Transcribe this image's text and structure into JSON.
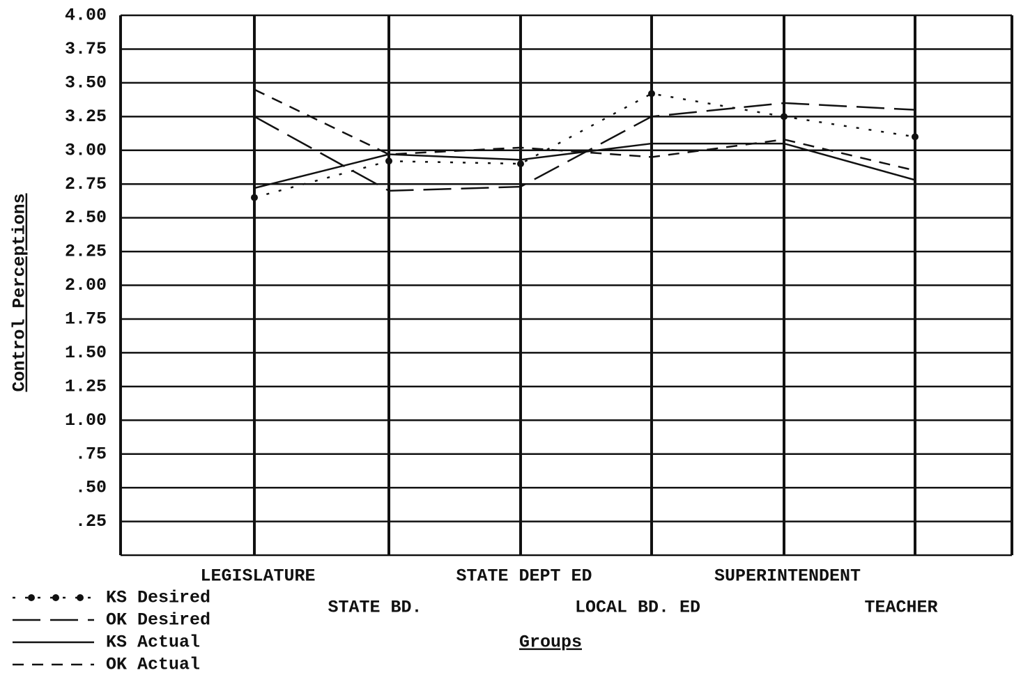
{
  "chart_data": {
    "type": "line",
    "y_label": "Control Perceptions",
    "x_label": "Groups",
    "categories": [
      "LEGISLATURE",
      "STATE BD.",
      "STATE DEPT ED",
      "LOCAL BD. ED",
      "SUPERINTENDENT",
      "TEACHER"
    ],
    "ylim": [
      0,
      4
    ],
    "yticks": [
      {
        "value": 0.25,
        "label": ".25"
      },
      {
        "value": 0.5,
        "label": ".50"
      },
      {
        "value": 0.75,
        "label": ".75"
      },
      {
        "value": 1,
        "label": "1.00"
      },
      {
        "value": 1.25,
        "label": "1.25"
      },
      {
        "value": 1.5,
        "label": "1.50"
      },
      {
        "value": 1.75,
        "label": "1.75"
      },
      {
        "value": 2,
        "label": "2.00"
      },
      {
        "value": 2.25,
        "label": "2.25"
      },
      {
        "value": 2.5,
        "label": "2.50"
      },
      {
        "value": 2.75,
        "label": "2.75"
      },
      {
        "value": 3,
        "label": "3.00"
      },
      {
        "value": 3.25,
        "label": "3.25"
      },
      {
        "value": 3.5,
        "label": "3.50"
      },
      {
        "value": 3.75,
        "label": "3.75"
      },
      {
        "value": 4,
        "label": "4.00"
      }
    ],
    "grid": true,
    "legend": "bottom-left",
    "series": [
      {
        "name": "KS Desired",
        "color": "#111111",
        "line_style": "dotted-marker",
        "values": [
          2.65,
          2.92,
          2.9,
          3.42,
          3.25,
          3.1
        ]
      },
      {
        "name": "OK Desired",
        "color": "#111111",
        "line_style": "long-dash",
        "values": [
          3.25,
          2.7,
          2.73,
          3.25,
          3.35,
          3.3
        ]
      },
      {
        "name": "KS Actual",
        "color": "#111111",
        "line_style": "solid",
        "values": [
          2.72,
          2.97,
          2.93,
          3.05,
          3.05,
          2.78
        ]
      },
      {
        "name": "OK Actual",
        "color": "#111111",
        "line_style": "dash",
        "values": [
          3.45,
          2.97,
          3.02,
          2.95,
          3.08,
          2.85
        ]
      }
    ]
  }
}
